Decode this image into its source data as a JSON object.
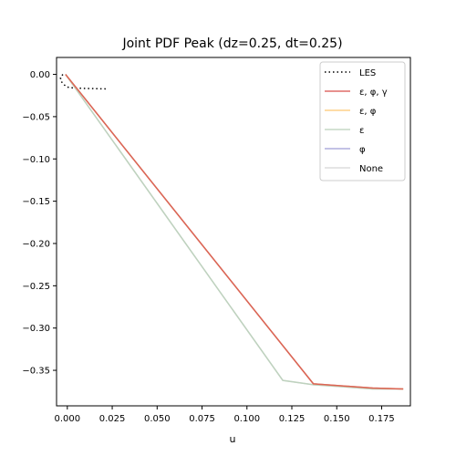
{
  "chart_data": {
    "type": "line",
    "title": "Joint PDF Peak (dz=0.25, dt=0.25)",
    "xlabel": "u",
    "ylabel": "",
    "xlim": [
      -0.006,
      0.191
    ],
    "ylim": [
      -0.392,
      0.02
    ],
    "xticks": [
      0.0,
      0.025,
      0.05,
      0.075,
      0.1,
      0.125,
      0.15,
      0.175
    ],
    "xtick_labels": [
      "0.000",
      "0.025",
      "0.050",
      "0.075",
      "0.100",
      "0.125",
      "0.150",
      "0.175"
    ],
    "yticks": [
      0.0,
      -0.05,
      -0.1,
      -0.15,
      -0.2,
      -0.25,
      -0.3,
      -0.35
    ],
    "ytick_labels": [
      "0.00",
      "−0.05",
      "−0.10",
      "−0.15",
      "−0.20",
      "−0.25",
      "−0.30",
      "−0.35"
    ],
    "grid": false,
    "legend_position": "top-right",
    "series": [
      {
        "name": "LES",
        "color": "#000000",
        "style": "dotted",
        "width": 1.5,
        "opacity": 1,
        "x": [
          -0.0025,
          -0.0038,
          -0.0035,
          -0.002,
          0.0,
          0.003,
          0.008,
          0.013,
          0.018,
          0.022
        ],
        "y": [
          -0.0,
          -0.004,
          -0.008,
          -0.012,
          -0.015,
          -0.016,
          -0.0165,
          -0.0168,
          -0.017,
          -0.0172
        ]
      },
      {
        "name": "None",
        "color": "#d3d3d3",
        "style": "solid",
        "width": 1.5,
        "opacity": 0.8,
        "x": [
          -0.001,
          0.12,
          0.137,
          0.17,
          0.187
        ],
        "y": [
          0.0,
          -0.362,
          -0.367,
          -0.372,
          -0.372
        ]
      },
      {
        "name": "φ",
        "color": "#9b99d6",
        "style": "solid",
        "width": 1.5,
        "opacity": 0.8,
        "x": [
          -0.001,
          0.137,
          0.17,
          0.187
        ],
        "y": [
          0.0,
          -0.366,
          -0.371,
          -0.372
        ]
      },
      {
        "name": "ε",
        "color": "#b6d0b6",
        "style": "solid",
        "width": 1.5,
        "opacity": 0.8,
        "x": [
          -0.001,
          0.12,
          0.137,
          0.17,
          0.187
        ],
        "y": [
          0.0,
          -0.362,
          -0.367,
          -0.372,
          -0.372
        ]
      },
      {
        "name": "ε, φ",
        "color": "#fcc56a",
        "style": "solid",
        "width": 1.5,
        "opacity": 0.8,
        "x": [
          -0.001,
          0.137,
          0.17,
          0.187
        ],
        "y": [
          0.0,
          -0.366,
          -0.371,
          -0.372
        ]
      },
      {
        "name": "ε, φ, γ",
        "color": "#d9544d",
        "style": "solid",
        "width": 1.5,
        "opacity": 0.85,
        "x": [
          -0.001,
          0.137,
          0.17,
          0.187
        ],
        "y": [
          0.0,
          -0.366,
          -0.371,
          -0.372
        ]
      }
    ],
    "legend_order": [
      "LES",
      "ε, φ, γ",
      "ε, φ",
      "ε",
      "φ",
      "None"
    ]
  }
}
